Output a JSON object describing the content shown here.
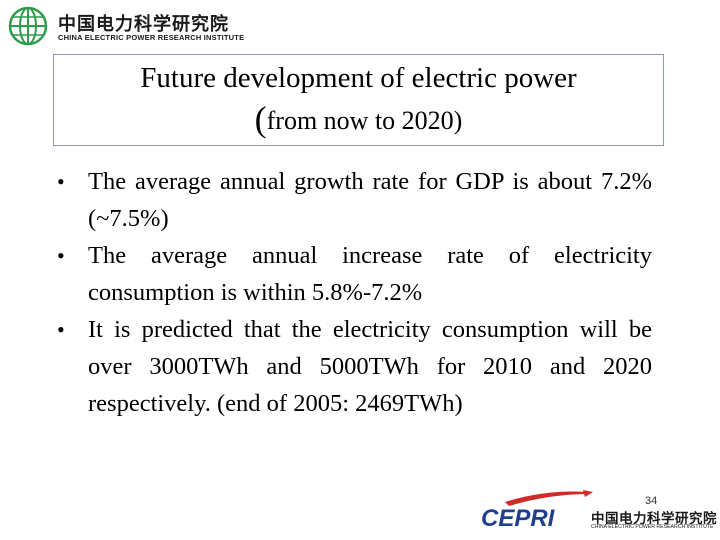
{
  "header": {
    "org_name_cn": "中国电力科学研究院",
    "org_name_en": "CHINA ELECTRIC POWER RESEARCH INSTITUTE",
    "logo_icon": "globe-grid-logo-icon"
  },
  "title": {
    "line1": "Future development of electric power",
    "line2_open": "(",
    "line2_text": "from now to 2020)"
  },
  "bullets": [
    "The average annual growth rate for GDP is about 7.2% (~7.5%)",
    "The average annual increase rate of electricity consumption is within 5.8%-7.2%",
    "It is predicted that the electricity consumption will be over 3000TWh and 5000TWh for 2010 and 2020 respectively.  (end of 2005:  2469TWh)"
  ],
  "footer": {
    "page_number": "34",
    "brand": "CEPRI",
    "org_name_cn": "中国电力科学研究院",
    "org_name_en": "CHINA ELECTRIC POWER RESEARCH INSTITUTE"
  },
  "colors": {
    "logo_green": "#2e9c4a",
    "cepri_blue": "#1f3f8f",
    "accent_red": "#d12a2a",
    "title_border": "#8f99b5"
  }
}
